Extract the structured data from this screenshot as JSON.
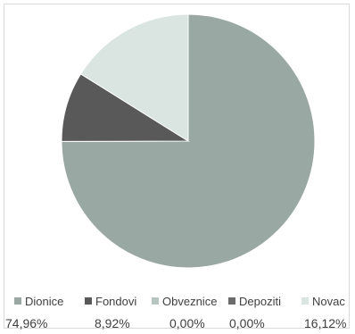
{
  "chart_data": {
    "type": "pie",
    "categories": [
      "Dionice",
      "Fondovi",
      "Obveznice",
      "Depoziti",
      "Novac"
    ],
    "values": [
      74.96,
      8.92,
      0.0,
      0.0,
      16.12
    ],
    "value_labels": [
      "74,96%",
      "8,92%",
      "0,00%",
      "0,00%",
      "16,12%"
    ],
    "colors": [
      "#9aa8a4",
      "#595959",
      "#b7c4bf",
      "#6b6b6b",
      "#dae5e2"
    ],
    "legend_position": "bottom",
    "start_angle_deg": 0,
    "direction": "clockwise"
  }
}
